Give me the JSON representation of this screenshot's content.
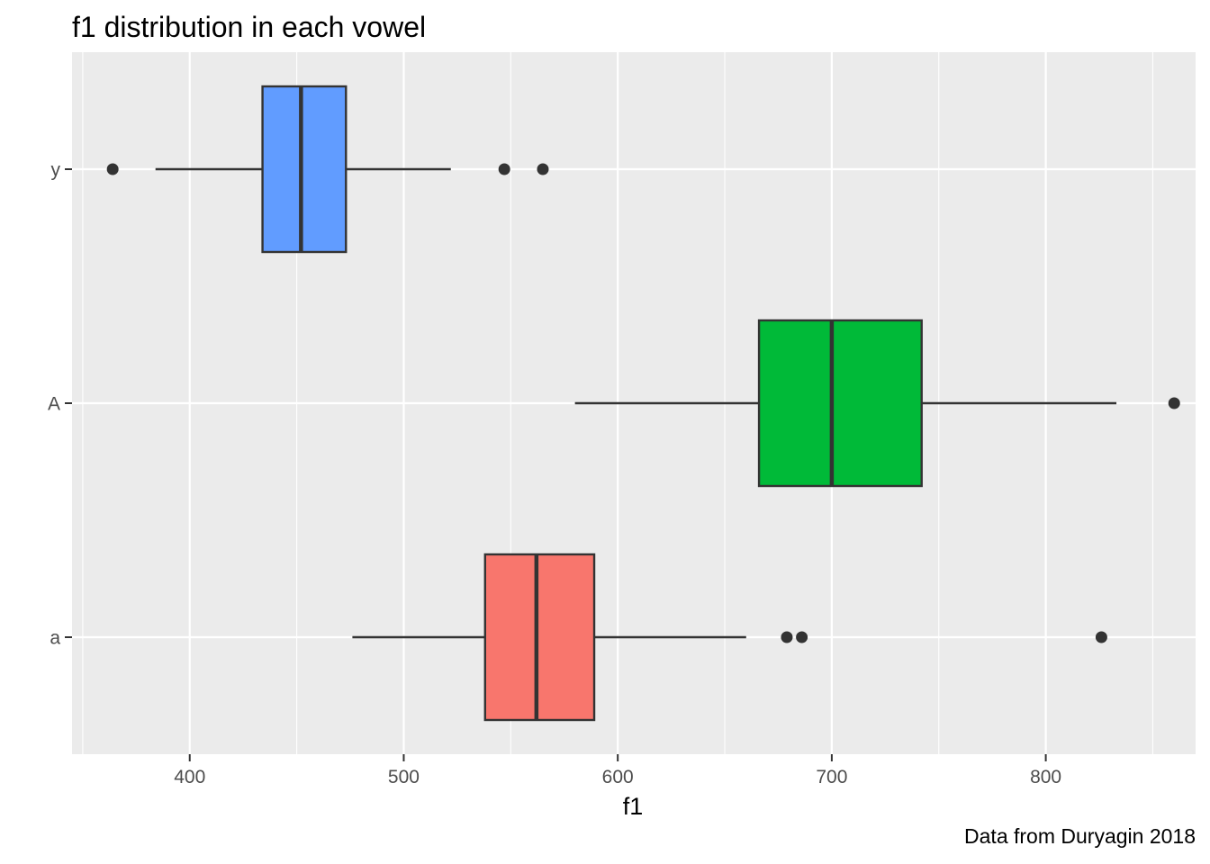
{
  "chart_data": {
    "type": "boxplot",
    "orientation": "horizontal",
    "title": "f1 distribution in each vowel",
    "caption": "Data from Duryagin 2018",
    "xlabel": "f1",
    "ylabel": "",
    "xlim": [
      345,
      870
    ],
    "x_ticks": [
      400,
      500,
      600,
      700,
      800
    ],
    "x_tick_labels": [
      "400",
      "500",
      "600",
      "700",
      "800"
    ],
    "categories": [
      "a",
      "A",
      "y"
    ],
    "grid": true,
    "legend": "none",
    "series": [
      {
        "category": "a",
        "color": "#F8766D",
        "whisker_low": 476,
        "q1": 538,
        "median": 562,
        "q3": 589,
        "whisker_high": 660,
        "outliers": [
          679,
          686,
          826
        ]
      },
      {
        "category": "A",
        "color": "#00BA38",
        "whisker_low": 580,
        "q1": 666,
        "median": 700,
        "q3": 742,
        "whisker_high": 833,
        "outliers": [
          860
        ]
      },
      {
        "category": "y",
        "color": "#619CFF",
        "whisker_low": 384,
        "q1": 434,
        "median": 452,
        "q3": 473,
        "whisker_high": 522,
        "outliers": [
          364,
          547,
          565
        ]
      }
    ]
  },
  "colors": {
    "panel_background": "#EBEBEB",
    "grid_major": "#FFFFFF",
    "box_outline": "#333333"
  }
}
